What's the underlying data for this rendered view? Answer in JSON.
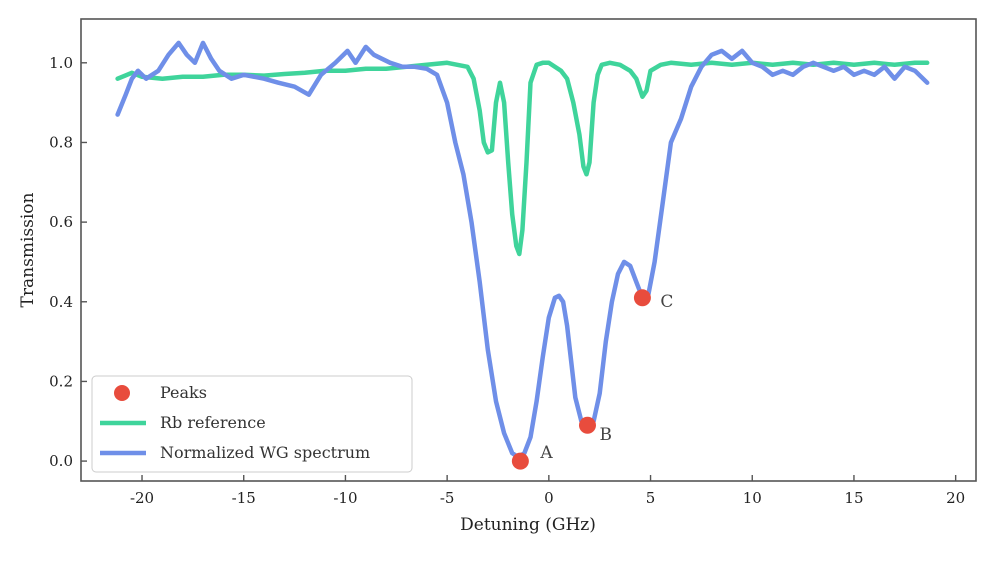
{
  "chart_data": {
    "type": "line",
    "title": "",
    "xlabel": "Detuning (GHz)",
    "ylabel": "Transmission",
    "xlim": [
      -23,
      21
    ],
    "ylim": [
      -0.05,
      1.11
    ],
    "grid": false,
    "legend_position": "lower-left",
    "x_ticks": [
      -20,
      -15,
      -10,
      -5,
      0,
      5,
      10,
      15,
      20
    ],
    "x_tick_labels": [
      "-20",
      "-15",
      "-10",
      "-5",
      "0",
      "5",
      "10",
      "15",
      "20"
    ],
    "y_ticks": [
      0.0,
      0.2,
      0.4,
      0.6,
      0.8,
      1.0
    ],
    "y_tick_labels": [
      "0.0",
      "0.2",
      "0.4",
      "0.6",
      "0.8",
      "1.0"
    ],
    "colors": {
      "rb": "#3fd49b",
      "wg": "#6f8fe8",
      "peaks": "#e84c3d",
      "axes": "#555555"
    },
    "series": [
      {
        "name": "Rb reference",
        "color": "#3fd49b",
        "x": [
          -21.2,
          -20.5,
          -20,
          -19,
          -18,
          -17,
          -16,
          -15,
          -14,
          -13,
          -12,
          -11,
          -10,
          -9,
          -8,
          -7,
          -6,
          -5,
          -4.5,
          -4,
          -3.7,
          -3.4,
          -3.2,
          -3.0,
          -2.8,
          -2.6,
          -2.4,
          -2.2,
          -2.0,
          -1.8,
          -1.6,
          -1.45,
          -1.3,
          -1.1,
          -0.9,
          -0.6,
          -0.3,
          0,
          0.3,
          0.6,
          0.9,
          1.2,
          1.5,
          1.7,
          1.85,
          2.0,
          2.2,
          2.4,
          2.6,
          3.0,
          3.5,
          4.0,
          4.3,
          4.6,
          4.8,
          5.0,
          5.5,
          6,
          7,
          8,
          9,
          10,
          11,
          12,
          13,
          14,
          15,
          16,
          17,
          18,
          18.6
        ],
        "values": [
          0.96,
          0.975,
          0.965,
          0.96,
          0.965,
          0.965,
          0.97,
          0.97,
          0.968,
          0.972,
          0.975,
          0.98,
          0.98,
          0.985,
          0.985,
          0.99,
          0.995,
          1.0,
          0.995,
          0.99,
          0.96,
          0.88,
          0.8,
          0.775,
          0.78,
          0.9,
          0.95,
          0.9,
          0.75,
          0.62,
          0.54,
          0.52,
          0.58,
          0.75,
          0.95,
          0.995,
          1.0,
          1.0,
          0.99,
          0.98,
          0.96,
          0.9,
          0.82,
          0.74,
          0.72,
          0.75,
          0.9,
          0.97,
          0.995,
          1.0,
          0.995,
          0.98,
          0.96,
          0.915,
          0.93,
          0.98,
          0.995,
          1.0,
          0.995,
          1.0,
          0.995,
          1.0,
          0.995,
          1.0,
          0.995,
          1.0,
          0.995,
          1.0,
          0.995,
          1.0,
          1.0
        ]
      },
      {
        "name": "Normalized WG spectrum",
        "color": "#6f8fe8",
        "x": [
          -21.2,
          -20.8,
          -20.5,
          -20.2,
          -19.8,
          -19.2,
          -18.7,
          -18.2,
          -17.8,
          -17.4,
          -17.0,
          -16.6,
          -16.2,
          -15.6,
          -15.0,
          -14.0,
          -13.3,
          -12.5,
          -11.8,
          -11.2,
          -10.5,
          -9.9,
          -9.5,
          -9.0,
          -8.6,
          -8.2,
          -7.8,
          -7.2,
          -6.6,
          -6.0,
          -5.5,
          -5.0,
          -4.6,
          -4.2,
          -3.8,
          -3.4,
          -3.0,
          -2.6,
          -2.2,
          -1.8,
          -1.5,
          -1.2,
          -0.9,
          -0.6,
          -0.3,
          0.0,
          0.3,
          0.5,
          0.7,
          0.9,
          1.1,
          1.3,
          1.6,
          1.9,
          2.2,
          2.5,
          2.8,
          3.1,
          3.4,
          3.7,
          4.0,
          4.3,
          4.6,
          4.9,
          5.2,
          5.6,
          6.0,
          6.5,
          7.0,
          7.5,
          8.0,
          8.5,
          9.0,
          9.5,
          10.0,
          10.5,
          11.0,
          11.5,
          12.0,
          12.5,
          13.0,
          13.5,
          14.0,
          14.5,
          15.0,
          15.5,
          16.0,
          16.5,
          17.0,
          17.5,
          18.0,
          18.6
        ],
        "values": [
          0.87,
          0.92,
          0.96,
          0.98,
          0.96,
          0.98,
          1.02,
          1.05,
          1.02,
          1.0,
          1.05,
          1.01,
          0.98,
          0.96,
          0.97,
          0.96,
          0.95,
          0.94,
          0.92,
          0.97,
          1.0,
          1.03,
          1.0,
          1.04,
          1.02,
          1.01,
          1.0,
          0.99,
          0.99,
          0.985,
          0.97,
          0.9,
          0.8,
          0.72,
          0.6,
          0.45,
          0.28,
          0.15,
          0.07,
          0.02,
          0.01,
          0.02,
          0.06,
          0.15,
          0.26,
          0.36,
          0.41,
          0.415,
          0.4,
          0.34,
          0.25,
          0.16,
          0.1,
          0.09,
          0.1,
          0.17,
          0.3,
          0.4,
          0.47,
          0.5,
          0.49,
          0.45,
          0.41,
          0.42,
          0.5,
          0.65,
          0.8,
          0.86,
          0.94,
          0.99,
          1.02,
          1.03,
          1.01,
          1.03,
          1.0,
          0.99,
          0.97,
          0.98,
          0.97,
          0.99,
          1.0,
          0.99,
          0.98,
          0.99,
          0.97,
          0.98,
          0.97,
          0.99,
          0.96,
          0.99,
          0.98,
          0.95
        ]
      }
    ],
    "peaks": {
      "name": "Peaks",
      "color": "#e84c3d",
      "points": [
        {
          "label": "A",
          "x": -1.4,
          "y": 0.0
        },
        {
          "label": "B",
          "x": 1.9,
          "y": 0.09
        },
        {
          "label": "C",
          "x": 4.6,
          "y": 0.41
        }
      ]
    },
    "legend": [
      "Peaks",
      "Rb reference",
      "Normalized WG spectrum"
    ]
  }
}
